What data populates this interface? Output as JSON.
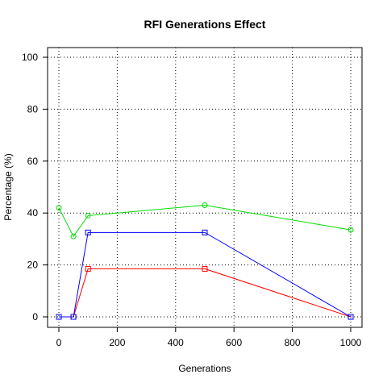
{
  "chart_data": {
    "type": "line",
    "title": "RFI Generations Effect",
    "xlabel": "Generations",
    "ylabel": "Percentage (%)",
    "xlim": [
      0,
      1000
    ],
    "ylim": [
      0,
      100
    ],
    "xticks": [
      0,
      200,
      400,
      600,
      800,
      1000
    ],
    "yticks": [
      0,
      20,
      40,
      60,
      80,
      100
    ],
    "x": [
      0,
      50,
      100,
      500,
      1000
    ],
    "grid": true,
    "legend": "none",
    "series": [
      {
        "color": "#00dd00",
        "marker": "circle",
        "values": [
          42,
          31,
          39,
          43,
          33.5
        ]
      },
      {
        "color": "#0000ff",
        "marker": "square",
        "values": [
          0,
          0,
          32.5,
          32.5,
          0
        ]
      },
      {
        "color": "#ff0000",
        "marker": "square",
        "values": [
          0,
          0,
          18.5,
          18.5,
          0
        ]
      }
    ]
  }
}
